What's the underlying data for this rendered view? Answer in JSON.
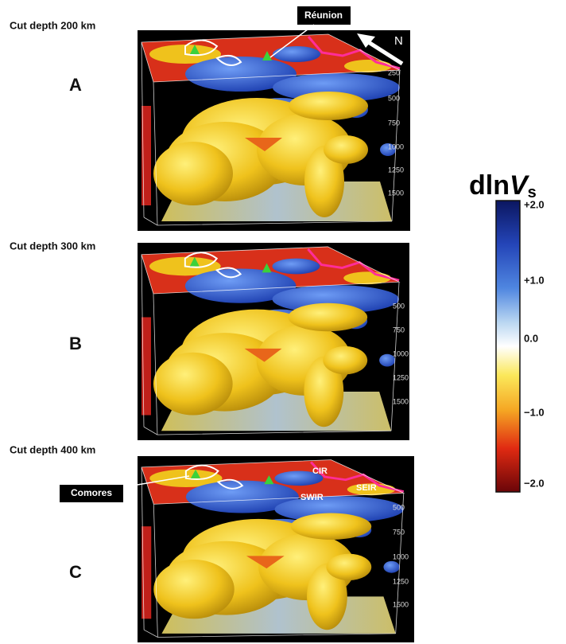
{
  "colorbar": {
    "title": "dln",
    "title_italic": "V",
    "title_sub": "s",
    "labels": [
      "+2.0",
      "+1.0",
      "0.0",
      "−1.0",
      "−2.0"
    ]
  },
  "panels": [
    {
      "label": "A",
      "caption": "Cut depth 200 km",
      "depths": [
        "250",
        "500",
        "750",
        "1000",
        "1250",
        "1500"
      ]
    },
    {
      "label": "B",
      "caption": "Cut depth 300 km",
      "depths": [
        "500",
        "750",
        "1000",
        "1250",
        "1500"
      ]
    },
    {
      "label": "C",
      "caption": "Cut depth 400 km",
      "depths": [
        "500",
        "750",
        "1000",
        "1250",
        "1500"
      ]
    }
  ],
  "annotations": {
    "reunion": "Réunion",
    "north": "N",
    "comores": "Comores",
    "cir": "CIR",
    "swir": "SWIR",
    "seir": "SEIR"
  }
}
